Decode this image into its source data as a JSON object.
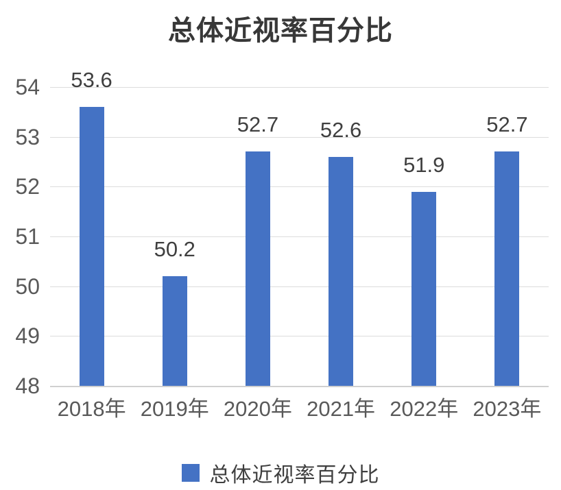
{
  "title": "总体近视率百分比",
  "legend": {
    "label": "总体近视率百分比",
    "swatch_color": "#4472C4"
  },
  "colors": {
    "bar": "#4472C4",
    "gridline": "#dcdcdc",
    "axis_line": "#d0d0d0",
    "tick_text": "#595959",
    "data_label_text": "#3f3f3f",
    "title_text": "#383838"
  },
  "chart_data": {
    "type": "bar",
    "title": "总体近视率百分比",
    "categories": [
      "2018年",
      "2019年",
      "2020年",
      "2021年",
      "2022年",
      "2023年"
    ],
    "values": [
      53.6,
      50.2,
      52.7,
      52.6,
      51.9,
      52.7
    ],
    "data_labels": [
      "53.6",
      "50.2",
      "52.7",
      "52.6",
      "51.9",
      "52.7"
    ],
    "y_ticks": [
      54,
      53,
      52,
      51,
      50,
      49,
      48
    ],
    "ylim": [
      48,
      54
    ],
    "xlabel": "",
    "ylabel": "",
    "grid": true,
    "legend_entries": [
      "总体近视率百分比"
    ],
    "legend_position": "bottom",
    "bar_color": "#4472C4"
  }
}
